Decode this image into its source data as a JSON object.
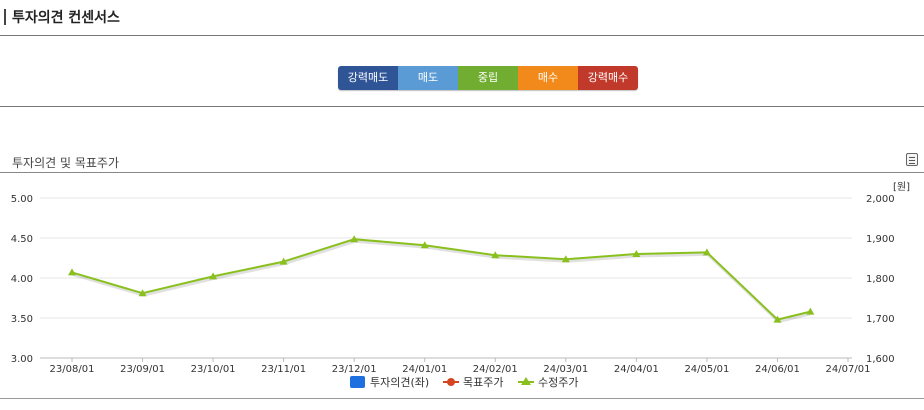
{
  "header": {
    "title": "투자의견 컨센서스"
  },
  "consensus_scale": [
    {
      "label": "강력매도",
      "color": "#2f5597"
    },
    {
      "label": "매도",
      "color": "#5b9bd5"
    },
    {
      "label": "중립",
      "color": "#70ad30"
    },
    {
      "label": "매수",
      "color": "#f28a1b"
    },
    {
      "label": "강력매수",
      "color": "#c0392b"
    }
  ],
  "chart_section": {
    "title": "투자의견 및 목표주가",
    "menu_icon": "menu-icon"
  },
  "chart_data": {
    "type": "line",
    "title": "",
    "x_categories": [
      "23/08/01",
      "23/09/01",
      "23/10/01",
      "23/11/01",
      "23/12/01",
      "24/01/01",
      "24/02/01",
      "24/03/01",
      "24/04/01",
      "24/05/01",
      "24/06/01",
      "24/07/01"
    ],
    "left_axis": {
      "ticks": [
        "3.00",
        "3.50",
        "4.00",
        "4.50",
        "5.00"
      ],
      "range": [
        3.0,
        5.0
      ]
    },
    "right_axis": {
      "unit": "[원]",
      "ticks": [
        "1,600",
        "1,700",
        "1,800",
        "1,900",
        "2,000"
      ],
      "range": [
        1600,
        2000
      ]
    },
    "grid": true,
    "legend_position": "bottom",
    "legend": [
      {
        "name": "투자의견(좌)",
        "color": "#1e6fe0",
        "marker": "square"
      },
      {
        "name": "목표주가",
        "color": "#d64522",
        "marker": "circle"
      },
      {
        "name": "수정주가",
        "color": "#8ac01e",
        "marker": "triangle"
      }
    ],
    "series": [
      {
        "name": "수정주가",
        "axis": "right",
        "x": [
          "23/08/01",
          "23/09/01",
          "23/10/01",
          "23/11/01",
          "23/12/01",
          "24/01/01",
          "24/02/01",
          "24/03/01",
          "24/04/01",
          "24/05/01",
          "24/06/01",
          "24/06/15"
        ],
        "values": [
          1814,
          1762,
          1804,
          1841,
          1897,
          1882,
          1857,
          1847,
          1860,
          1864,
          1696,
          1716
        ]
      }
    ]
  }
}
